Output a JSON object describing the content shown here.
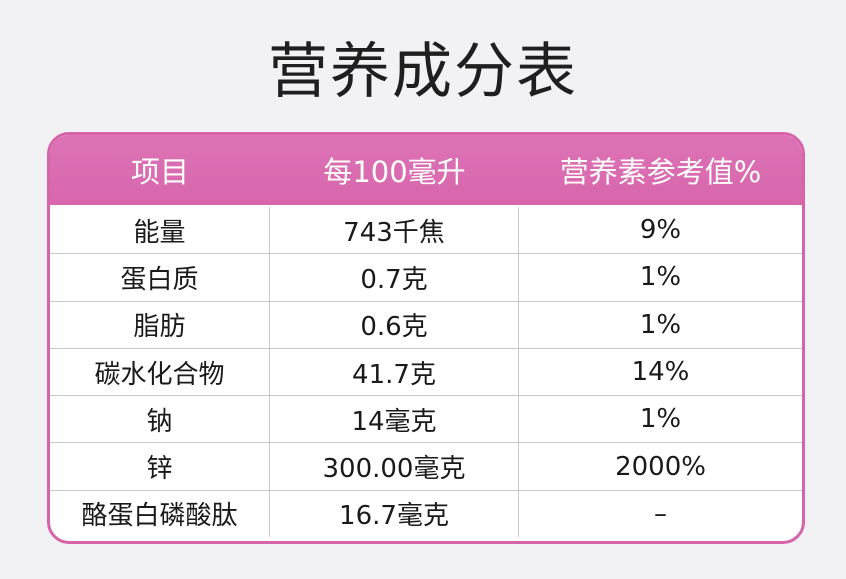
{
  "title": "营养成分表",
  "table": {
    "headers": [
      "项目",
      "每100毫升",
      "营养素参考值%"
    ],
    "rows": [
      [
        "能量",
        "743千焦",
        "9%"
      ],
      [
        "蛋白质",
        "0.7克",
        "1%"
      ],
      [
        "脂肪",
        "0.6克",
        "1%"
      ],
      [
        "碳水化合物",
        "41.7克",
        "14%"
      ],
      [
        "钠",
        "14毫克",
        "1%"
      ],
      [
        "锌",
        "300.00毫克",
        "2000%"
      ],
      [
        "酪蛋白磷酸肽",
        "16.7毫克",
        "–"
      ]
    ]
  },
  "colors": {
    "accent": "#d866ac",
    "background": "#f2f2f4"
  }
}
